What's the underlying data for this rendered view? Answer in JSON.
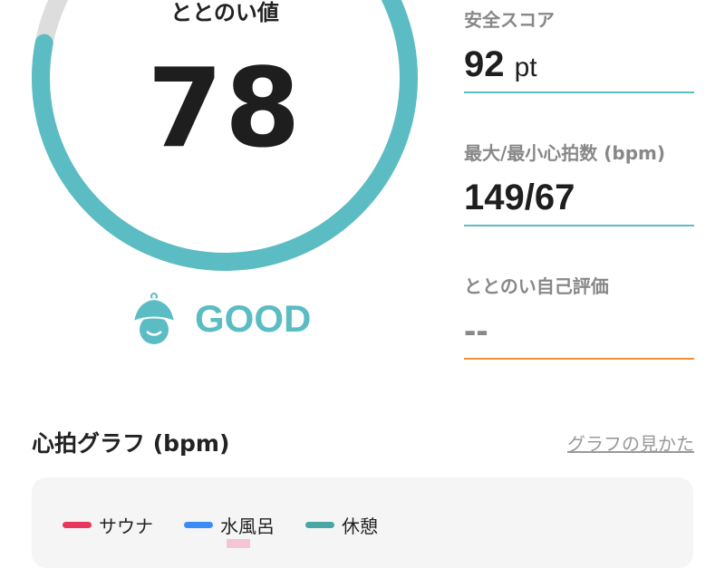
{
  "gauge": {
    "label": "ととのい値",
    "value": "78",
    "fraction": 0.78,
    "track_color": "#dddddd",
    "fill_color": "#5bbdc3"
  },
  "status": {
    "icon": "sauna-hat-face-icon",
    "label": "GOOD",
    "color": "#5bbdc3"
  },
  "stats": [
    {
      "label": "安全スコア",
      "value": "92",
      "unit": "pt",
      "line_color": "#5bbdc3"
    },
    {
      "label": "最大/最小心拍数 (bpm)",
      "value": "149/67",
      "unit": "",
      "line_color": "#5bbdc3"
    },
    {
      "label": "ととのい自己評価",
      "value": "--",
      "unit": "",
      "line_color": "#f0913a"
    }
  ],
  "heart_graph": {
    "title": "心拍グラフ (bpm)",
    "help_link": "グラフの見かた",
    "legend": [
      {
        "label": "サウナ",
        "color": "#e8365d"
      },
      {
        "label": "水風呂",
        "color": "#3b8cf5"
      },
      {
        "label": "休憩",
        "color": "#4aa5a5"
      }
    ]
  }
}
